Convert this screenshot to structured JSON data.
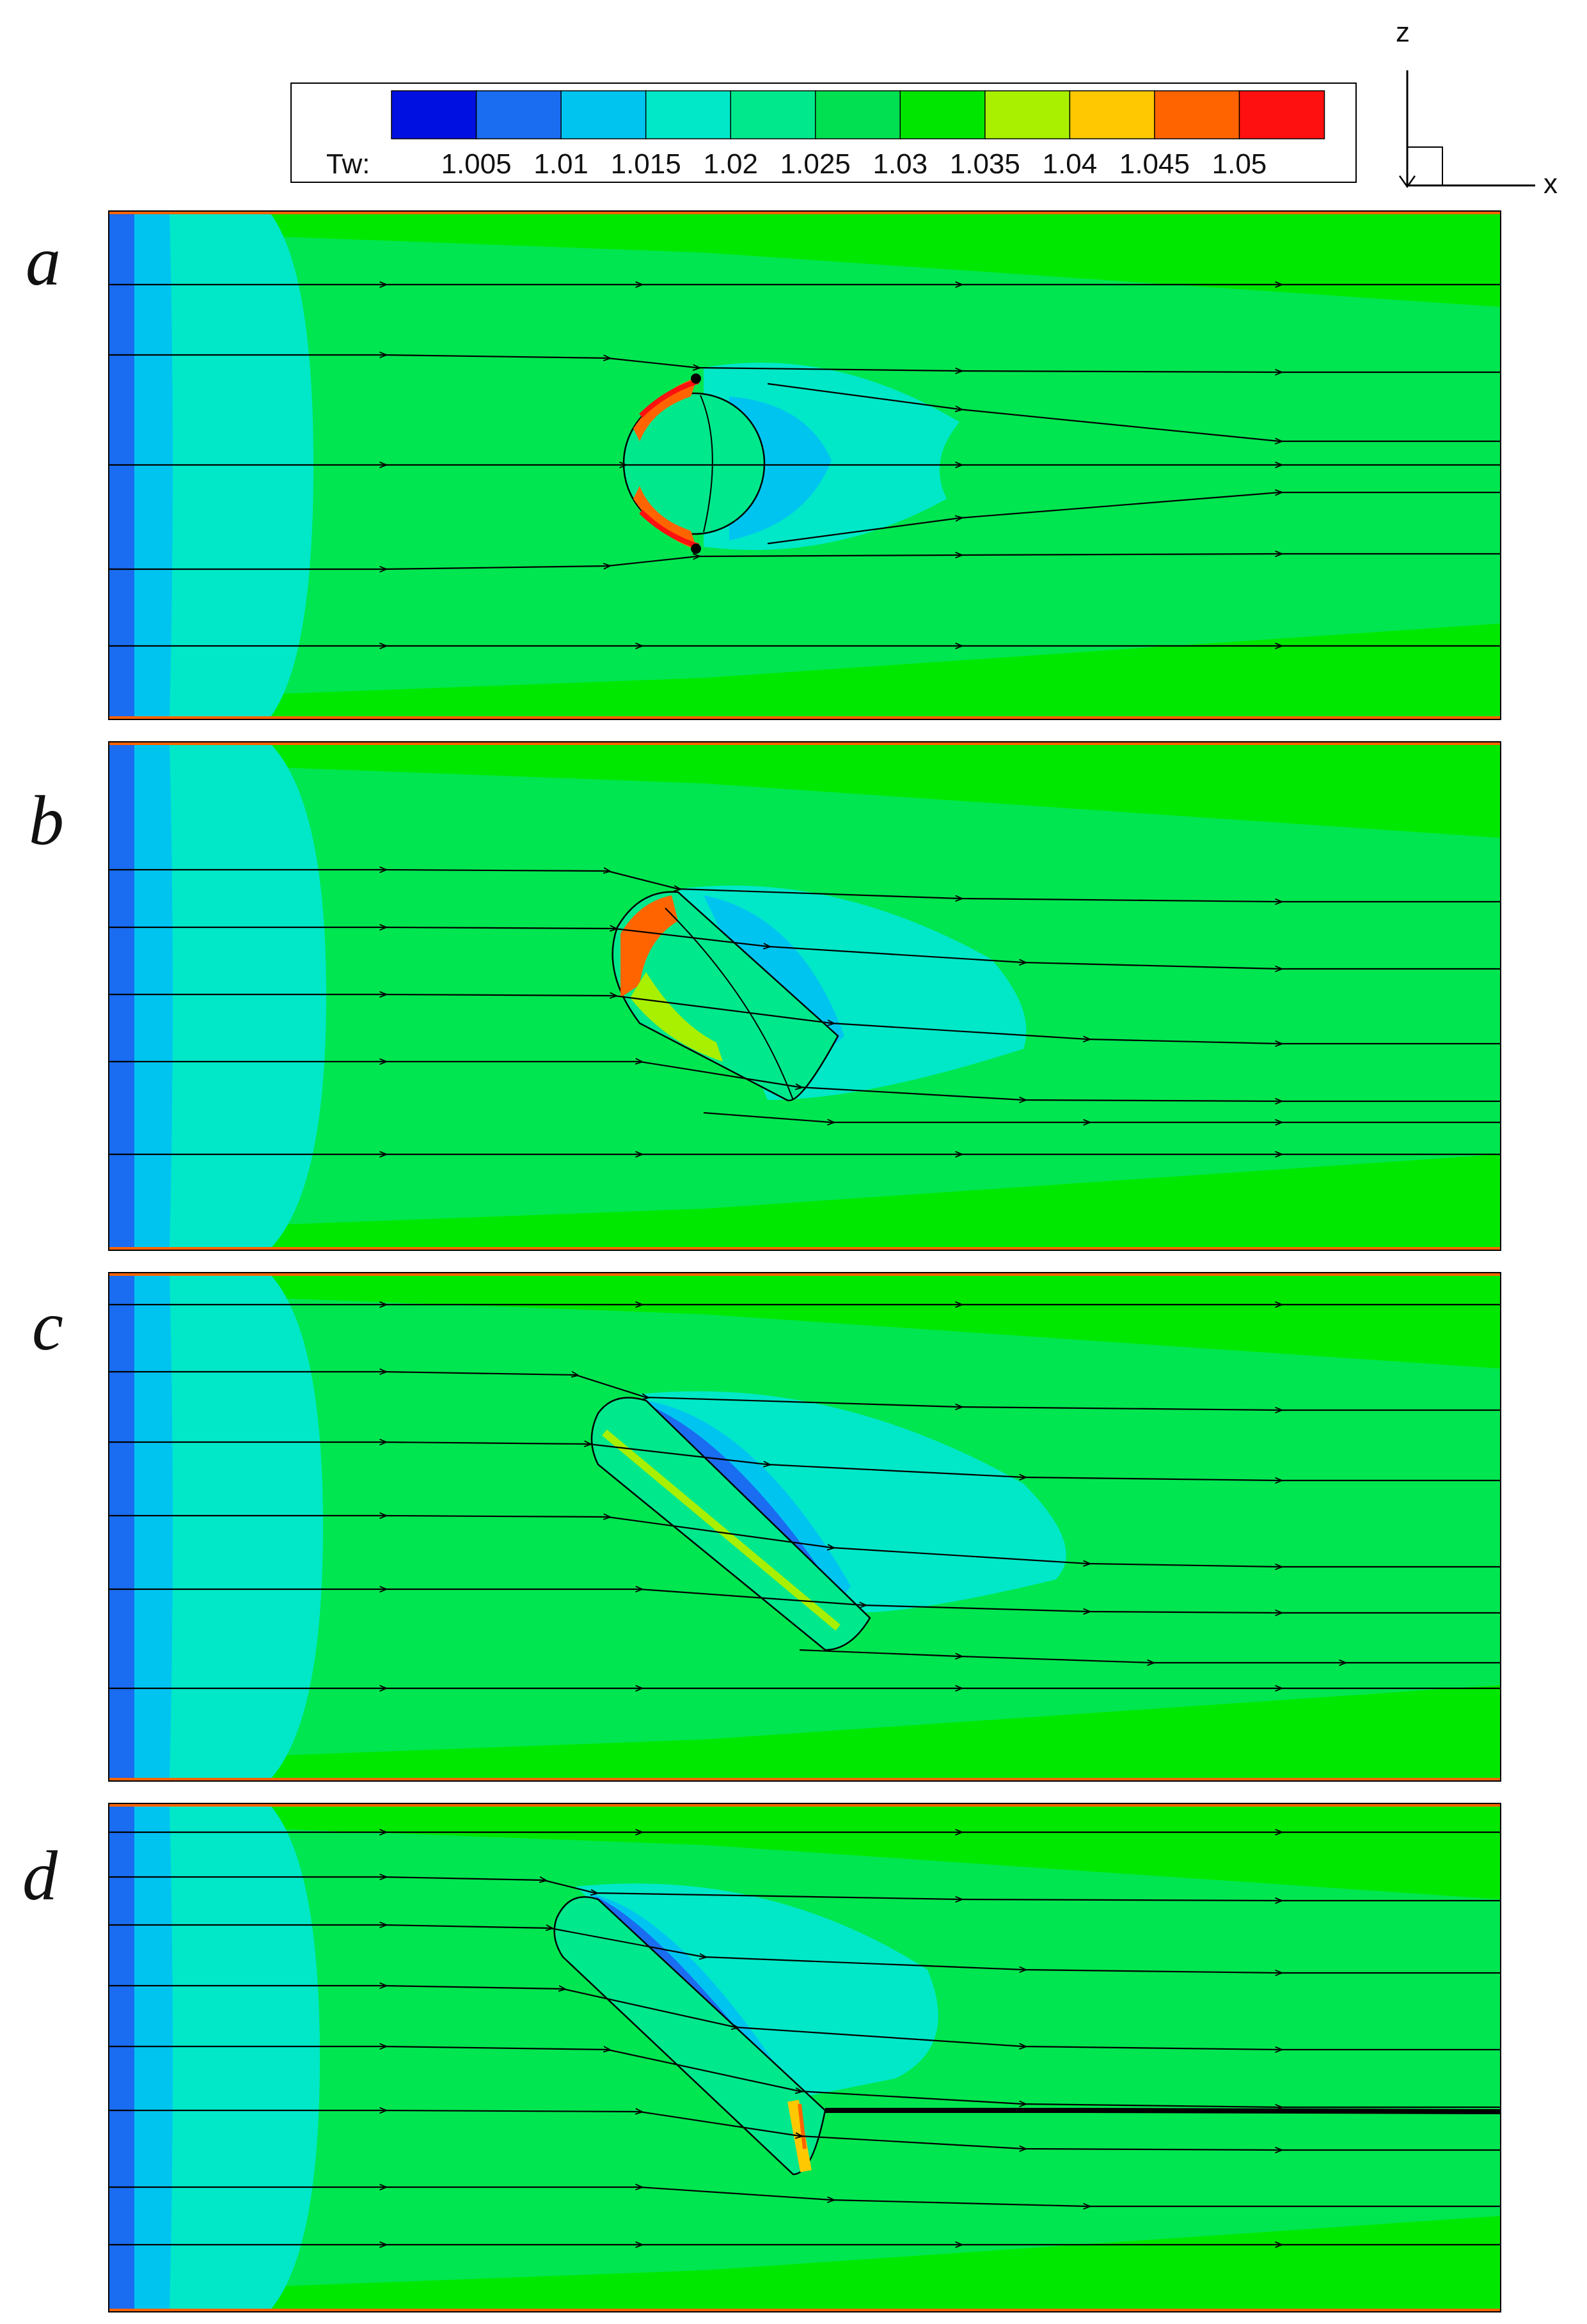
{
  "colorbar": {
    "variable": "Tw:",
    "ticks": [
      "1.005",
      "1.01",
      "1.015",
      "1.02",
      "1.025",
      "1.03",
      "1.035",
      "1.04",
      "1.045",
      "1.05"
    ],
    "colors": [
      "#0010e0",
      "#1a6cf0",
      "#00c4f0",
      "#00e8c8",
      "#00e88c",
      "#00e050",
      "#00e600",
      "#a8f000",
      "#ffc800",
      "#ff6400",
      "#ff1010"
    ]
  },
  "axes_triad": {
    "vertical": "z",
    "horizontal": "x"
  },
  "panels": [
    {
      "label": "a"
    },
    {
      "label": "b"
    },
    {
      "label": "c"
    },
    {
      "label": "d"
    }
  ]
}
